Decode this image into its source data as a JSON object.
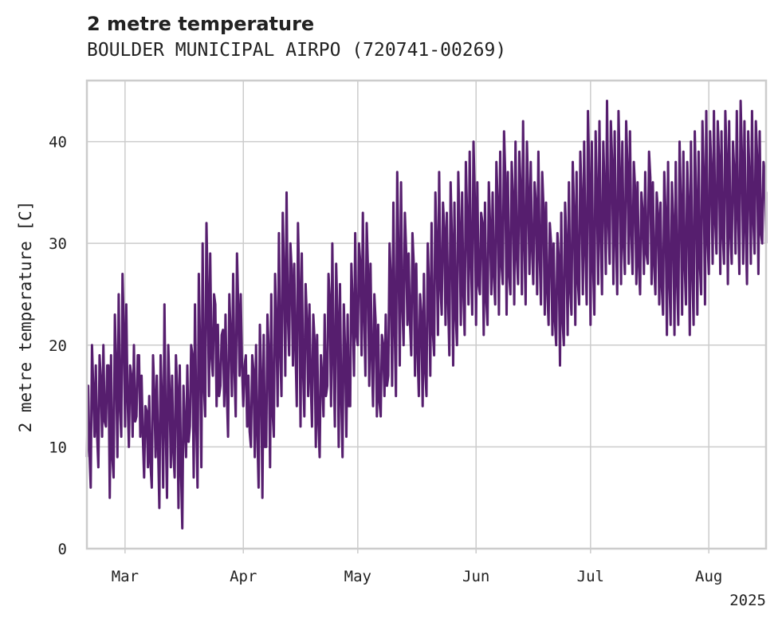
{
  "chart_data": {
    "type": "line",
    "title": "2 metre temperature",
    "subtitle": "BOULDER MUNICIPAL AIRPO (720741-00269)",
    "xlabel": "",
    "ylabel": "2 metre temperature [C]",
    "year_label": "2025",
    "xlim": [
      "2025-02-19",
      "2025-08-16"
    ],
    "ylim": [
      0,
      46
    ],
    "grid": true,
    "x_ticks": [
      {
        "date": "2025-03-01",
        "label": "Mar"
      },
      {
        "date": "2025-04-01",
        "label": "Apr"
      },
      {
        "date": "2025-05-01",
        "label": "May"
      },
      {
        "date": "2025-06-01",
        "label": "Jun"
      },
      {
        "date": "2025-07-01",
        "label": "Jul"
      },
      {
        "date": "2025-08-01",
        "label": "Aug"
      }
    ],
    "y_ticks": [
      0,
      10,
      20,
      30,
      40
    ],
    "series": [
      {
        "color": "#561e6e",
        "x": [
          "2025-02-19",
          "2025-02-20",
          "2025-02-21",
          "2025-02-22",
          "2025-02-23",
          "2025-02-24",
          "2025-02-25",
          "2025-02-26",
          "2025-02-27",
          "2025-02-28",
          "2025-03-01",
          "2025-03-02",
          "2025-03-03",
          "2025-03-04",
          "2025-03-05",
          "2025-03-06",
          "2025-03-07",
          "2025-03-08",
          "2025-03-09",
          "2025-03-10",
          "2025-03-11",
          "2025-03-12",
          "2025-03-13",
          "2025-03-14",
          "2025-03-15",
          "2025-03-16",
          "2025-03-17",
          "2025-03-18",
          "2025-03-19",
          "2025-03-20",
          "2025-03-21",
          "2025-03-22",
          "2025-03-23",
          "2025-03-24",
          "2025-03-25",
          "2025-03-26",
          "2025-03-27",
          "2025-03-28",
          "2025-03-29",
          "2025-03-30",
          "2025-03-31",
          "2025-04-01",
          "2025-04-02",
          "2025-04-03",
          "2025-04-04",
          "2025-04-05",
          "2025-04-06",
          "2025-04-07",
          "2025-04-08",
          "2025-04-09",
          "2025-04-10",
          "2025-04-11",
          "2025-04-12",
          "2025-04-13",
          "2025-04-14",
          "2025-04-15",
          "2025-04-16",
          "2025-04-17",
          "2025-04-18",
          "2025-04-19",
          "2025-04-20",
          "2025-04-21",
          "2025-04-22",
          "2025-04-23",
          "2025-04-24",
          "2025-04-25",
          "2025-04-26",
          "2025-04-27",
          "2025-04-28",
          "2025-04-29",
          "2025-04-30",
          "2025-05-01",
          "2025-05-02",
          "2025-05-03",
          "2025-05-04",
          "2025-05-05",
          "2025-05-06",
          "2025-05-07",
          "2025-05-08",
          "2025-05-09",
          "2025-05-10",
          "2025-05-11",
          "2025-05-12",
          "2025-05-13",
          "2025-05-14",
          "2025-05-15",
          "2025-05-16",
          "2025-05-17",
          "2025-05-18",
          "2025-05-19",
          "2025-05-20",
          "2025-05-21",
          "2025-05-22",
          "2025-05-23",
          "2025-05-24",
          "2025-05-25",
          "2025-05-26",
          "2025-05-27",
          "2025-05-28",
          "2025-05-29",
          "2025-05-30",
          "2025-05-31",
          "2025-06-01",
          "2025-06-02",
          "2025-06-03",
          "2025-06-04",
          "2025-06-05",
          "2025-06-06",
          "2025-06-07",
          "2025-06-08",
          "2025-06-09",
          "2025-06-10",
          "2025-06-11",
          "2025-06-12",
          "2025-06-13",
          "2025-06-14",
          "2025-06-15",
          "2025-06-16",
          "2025-06-17",
          "2025-06-18",
          "2025-06-19",
          "2025-06-20",
          "2025-06-21",
          "2025-06-22",
          "2025-06-23",
          "2025-06-24",
          "2025-06-25",
          "2025-06-26",
          "2025-06-27",
          "2025-06-28",
          "2025-06-29",
          "2025-06-30",
          "2025-07-01",
          "2025-07-02",
          "2025-07-03",
          "2025-07-04",
          "2025-07-05",
          "2025-07-06",
          "2025-07-07",
          "2025-07-08",
          "2025-07-09",
          "2025-07-10",
          "2025-07-11",
          "2025-07-12",
          "2025-07-13",
          "2025-07-14",
          "2025-07-15",
          "2025-07-16",
          "2025-07-17",
          "2025-07-18",
          "2025-07-19",
          "2025-07-20",
          "2025-07-21",
          "2025-07-22",
          "2025-07-23",
          "2025-07-24",
          "2025-07-25",
          "2025-07-26",
          "2025-07-27",
          "2025-07-28",
          "2025-07-29",
          "2025-07-30",
          "2025-07-31",
          "2025-08-01",
          "2025-08-02",
          "2025-08-03",
          "2025-08-04",
          "2025-08-05",
          "2025-08-06",
          "2025-08-07",
          "2025-08-08",
          "2025-08-09",
          "2025-08-10",
          "2025-08-11",
          "2025-08-12",
          "2025-08-13",
          "2025-08-14",
          "2025-08-15",
          "2025-08-16"
        ],
        "low": [
          9,
          6,
          11,
          8,
          11,
          12,
          5,
          7,
          9,
          11,
          12,
          10,
          11,
          13,
          11,
          7,
          8,
          6,
          9,
          4,
          6,
          5,
          8,
          7,
          4,
          2,
          9,
          12,
          7,
          6,
          8,
          13,
          15,
          17,
          14,
          16,
          14,
          11,
          15,
          13,
          17,
          14,
          12,
          10,
          9,
          6,
          5,
          10,
          8,
          11,
          14,
          15,
          17,
          19,
          18,
          14,
          12,
          13,
          15,
          12,
          10,
          9,
          13,
          16,
          14,
          12,
          10,
          9,
          11,
          14,
          17,
          20,
          19,
          17,
          16,
          14,
          13,
          13,
          15,
          17,
          16,
          15,
          18,
          20,
          22,
          19,
          17,
          15,
          14,
          15,
          17,
          19,
          21,
          23,
          22,
          19,
          18,
          20,
          22,
          21,
          24,
          23,
          22,
          25,
          21,
          22,
          25,
          24,
          23,
          26,
          23,
          25,
          24,
          26,
          25,
          24,
          27,
          26,
          25,
          24,
          23,
          22,
          21,
          20,
          18,
          20,
          21,
          23,
          22,
          24,
          25,
          24,
          22,
          23,
          26,
          25,
          27,
          28,
          26,
          25,
          26,
          27,
          28,
          27,
          26,
          25,
          27,
          28,
          26,
          25,
          24,
          23,
          21,
          22,
          21,
          22,
          23,
          24,
          21,
          22,
          23,
          25,
          24,
          27,
          28,
          29,
          27,
          28,
          26,
          28,
          29,
          27,
          28,
          26,
          28,
          29,
          27,
          30,
          31
        ],
        "high": [
          16,
          20,
          18,
          19,
          20,
          18,
          19,
          23,
          25,
          27,
          24,
          18,
          20,
          19,
          17,
          14,
          15,
          19,
          17,
          19,
          24,
          20,
          17,
          19,
          18,
          16,
          18,
          20,
          24,
          27,
          30,
          32,
          29,
          25,
          22,
          21,
          23,
          25,
          27,
          29,
          25,
          18,
          17,
          19,
          20,
          22,
          21,
          23,
          25,
          27,
          31,
          33,
          35,
          30,
          28,
          32,
          29,
          26,
          24,
          23,
          21,
          19,
          23,
          27,
          30,
          28,
          26,
          24,
          23,
          28,
          31,
          30,
          33,
          32,
          28,
          25,
          22,
          21,
          23,
          30,
          34,
          37,
          36,
          33,
          29,
          31,
          28,
          25,
          27,
          30,
          32,
          35,
          37,
          34,
          33,
          36,
          34,
          37,
          35,
          38,
          39,
          40,
          36,
          33,
          34,
          36,
          35,
          38,
          39,
          41,
          37,
          38,
          40,
          39,
          42,
          40,
          38,
          36,
          39,
          37,
          34,
          32,
          30,
          31,
          33,
          34,
          36,
          38,
          37,
          39,
          40,
          43,
          40,
          41,
          42,
          40,
          44,
          42,
          41,
          43,
          40,
          42,
          41,
          38,
          36,
          35,
          37,
          39,
          36,
          35,
          34,
          37,
          38,
          36,
          38,
          40,
          39,
          38,
          40,
          41,
          39,
          42,
          43,
          41,
          43,
          42,
          41,
          43,
          42,
          40,
          43,
          44,
          42,
          41,
          43,
          42,
          41,
          38,
          35
        ]
      }
    ]
  }
}
